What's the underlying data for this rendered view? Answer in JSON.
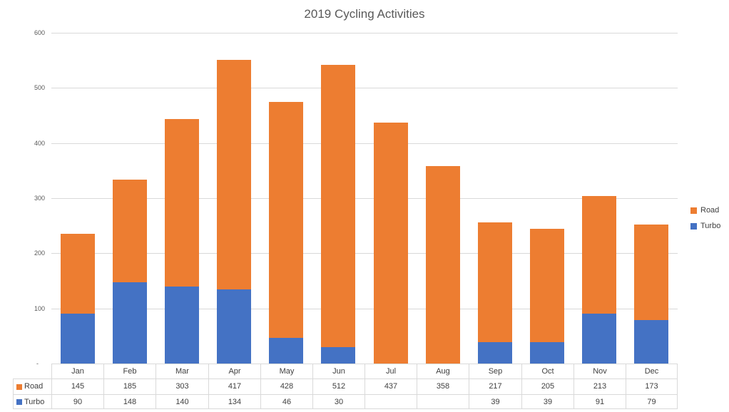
{
  "chart_data": {
    "type": "bar",
    "stacked": true,
    "title": "2019 Cycling Activities",
    "categories": [
      "Jan",
      "Feb",
      "Mar",
      "Apr",
      "May",
      "Jun",
      "Jul",
      "Aug",
      "Sep",
      "Oct",
      "Nov",
      "Dec"
    ],
    "series": [
      {
        "name": "Road",
        "color": "#ED7D31",
        "values": [
          145,
          185,
          303,
          417,
          428,
          512,
          437,
          358,
          217,
          205,
          213,
          173
        ]
      },
      {
        "name": "Turbo",
        "color": "#4472C4",
        "values": [
          90,
          148,
          140,
          134,
          46,
          30,
          null,
          null,
          39,
          39,
          91,
          79
        ]
      }
    ],
    "ylim": [
      0,
      600
    ],
    "y_tick_values": [
      0,
      100,
      200,
      300,
      400,
      500,
      600
    ],
    "y_tick_labels": [
      "-",
      "100",
      "200",
      "300",
      "400",
      "500",
      "600"
    ],
    "grid": true,
    "legend_position": "right",
    "legend_labels": [
      "Road",
      "Turbo"
    ],
    "data_table": true
  },
  "colors": {
    "road": "#ED7D31",
    "turbo": "#4472C4",
    "gridline": "#D9D9D9",
    "table_border": "#D9D9D9",
    "axis_label_text": "#595959",
    "title_text": "#595959",
    "table_text": "#404040",
    "background": "#FFFFFF"
  }
}
